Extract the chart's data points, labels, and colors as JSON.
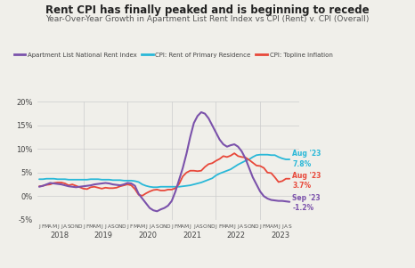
{
  "title": "Rent CPI has finally peaked and is beginning to recede",
  "subtitle": "Year-Over-Year Growth in Apartment List Rent Index vs CPI (Rent) v. CPI (Overall)",
  "legend_labels": [
    "Apartment List National Rent Index",
    "CPI: Rent of Primary Residence",
    "CPI: Topline Inflation"
  ],
  "colors": {
    "apartment": "#7B52AB",
    "cpi_rent": "#29B8D8",
    "cpi_topline": "#E8483A"
  },
  "ylim": [
    -5,
    20
  ],
  "yticks": [
    -5,
    0,
    5,
    10,
    15,
    20
  ],
  "ytick_labels": [
    "-5%",
    "0%",
    "5%",
    "10%",
    "15%",
    "20%"
  ],
  "background_color": "#F0EFEA",
  "grid_color": "#CCCCCC",
  "apartment_data": [
    2.0,
    2.2,
    2.5,
    2.8,
    2.7,
    2.6,
    2.5,
    2.3,
    2.1,
    2.0,
    1.9,
    2.0,
    2.1,
    2.2,
    2.3,
    2.5,
    2.6,
    2.7,
    2.8,
    2.7,
    2.5,
    2.4,
    2.3,
    2.5,
    2.8,
    2.7,
    2.2,
    0.5,
    -0.5,
    -1.5,
    -2.5,
    -3.0,
    -3.2,
    -2.8,
    -2.5,
    -2.0,
    -1.0,
    1.0,
    3.5,
    6.0,
    9.0,
    12.5,
    15.5,
    17.0,
    17.8,
    17.5,
    16.5,
    15.0,
    13.5,
    12.0,
    11.0,
    10.5,
    10.8,
    11.0,
    10.5,
    9.5,
    8.0,
    6.0,
    4.0,
    2.5,
    1.0,
    0.0,
    -0.5,
    -0.8,
    -0.9,
    -1.0,
    -1.0,
    -1.1,
    -1.2
  ],
  "cpi_rent_data": [
    3.6,
    3.6,
    3.7,
    3.7,
    3.7,
    3.6,
    3.6,
    3.6,
    3.5,
    3.5,
    3.5,
    3.5,
    3.5,
    3.5,
    3.6,
    3.6,
    3.6,
    3.5,
    3.5,
    3.5,
    3.4,
    3.4,
    3.4,
    3.3,
    3.3,
    3.3,
    3.2,
    3.0,
    2.5,
    2.2,
    2.0,
    1.9,
    1.9,
    2.0,
    2.0,
    2.0,
    2.0,
    2.0,
    2.0,
    2.1,
    2.2,
    2.3,
    2.5,
    2.7,
    2.9,
    3.2,
    3.5,
    3.8,
    4.4,
    4.8,
    5.1,
    5.4,
    5.7,
    6.2,
    6.7,
    7.1,
    7.5,
    7.8,
    8.3,
    8.7,
    8.8,
    8.8,
    8.8,
    8.7,
    8.7,
    8.3,
    8.0,
    7.8,
    7.8
  ],
  "cpi_topline_data": [
    2.1,
    2.2,
    2.4,
    2.5,
    2.8,
    2.9,
    2.9,
    2.7,
    2.3,
    2.5,
    2.2,
    1.9,
    1.6,
    1.5,
    1.9,
    2.0,
    1.8,
    1.6,
    1.8,
    1.7,
    1.7,
    1.8,
    2.1,
    2.3,
    2.5,
    2.3,
    1.5,
    0.3,
    0.1,
    0.6,
    1.0,
    1.3,
    1.4,
    1.2,
    1.2,
    1.4,
    1.4,
    1.7,
    2.6,
    4.2,
    5.0,
    5.4,
    5.4,
    5.3,
    5.4,
    6.2,
    6.8,
    7.0,
    7.5,
    7.9,
    8.5,
    8.3,
    8.6,
    9.1,
    8.5,
    8.3,
    8.2,
    7.7,
    7.1,
    6.5,
    6.4,
    6.0,
    5.0,
    4.9,
    4.0,
    3.0,
    3.2,
    3.7,
    3.7
  ]
}
